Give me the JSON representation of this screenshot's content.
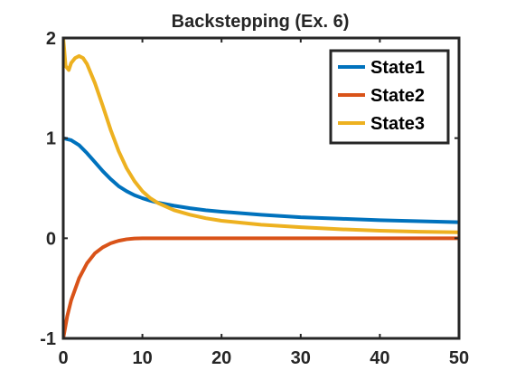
{
  "chart_data": {
    "type": "line",
    "title": "Backstepping (Ex. 6)",
    "xlabel": "",
    "ylabel": "",
    "xlim": [
      0,
      50
    ],
    "ylim": [
      -1,
      2
    ],
    "xticks": [
      "0",
      "10",
      "20",
      "30",
      "40",
      "50"
    ],
    "yticks": [
      "-1",
      "0",
      "1",
      "2"
    ],
    "grid": false,
    "legend_position": "top-right",
    "series": [
      {
        "name": "State1",
        "color": "#0072BD",
        "x": [
          0,
          1,
          2,
          3,
          4,
          5,
          6,
          7,
          8,
          9,
          10,
          11,
          12,
          14,
          16,
          18,
          20,
          25,
          30,
          35,
          40,
          45,
          50
        ],
        "y": [
          1.0,
          0.98,
          0.93,
          0.85,
          0.76,
          0.67,
          0.59,
          0.52,
          0.47,
          0.43,
          0.4,
          0.375,
          0.355,
          0.325,
          0.3,
          0.28,
          0.265,
          0.235,
          0.21,
          0.195,
          0.18,
          0.17,
          0.16
        ]
      },
      {
        "name": "State2",
        "color": "#D95319",
        "x": [
          0,
          0.5,
          1,
          2,
          3,
          4,
          5,
          6,
          7,
          8,
          9,
          10,
          12,
          15,
          20,
          30,
          40,
          50
        ],
        "y": [
          -1.0,
          -0.78,
          -0.62,
          -0.4,
          -0.25,
          -0.15,
          -0.09,
          -0.05,
          -0.025,
          -0.01,
          -0.003,
          0,
          0,
          0,
          0,
          0,
          0,
          0
        ]
      },
      {
        "name": "State3",
        "color": "#EDB120",
        "x": [
          0,
          0.3,
          0.7,
          1,
          1.5,
          2,
          2.5,
          3,
          4,
          5,
          6,
          7,
          8,
          9,
          10,
          11,
          12,
          14,
          16,
          18,
          20,
          25,
          30,
          35,
          40,
          45,
          50
        ],
        "y": [
          2.0,
          1.72,
          1.68,
          1.75,
          1.8,
          1.82,
          1.8,
          1.74,
          1.55,
          1.32,
          1.08,
          0.87,
          0.7,
          0.57,
          0.47,
          0.4,
          0.35,
          0.28,
          0.235,
          0.2,
          0.175,
          0.135,
          0.11,
          0.09,
          0.075,
          0.065,
          0.06
        ]
      }
    ]
  }
}
